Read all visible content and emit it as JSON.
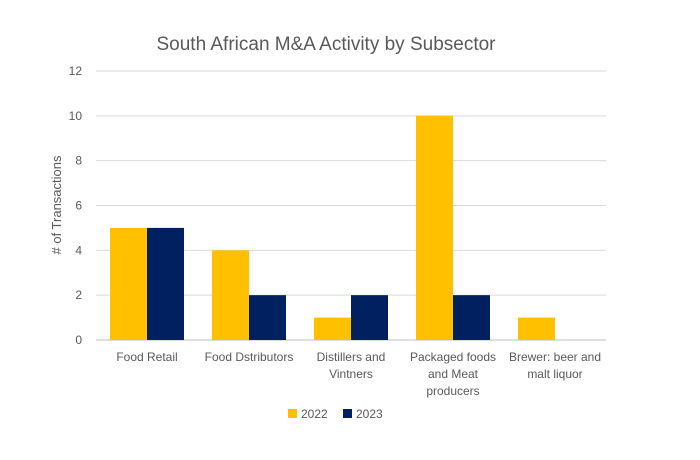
{
  "chart_data": {
    "type": "bar",
    "title": "South African M&A Activity by Subsector",
    "xlabel": "",
    "ylabel": "# of Transactions",
    "ylim": [
      0,
      12
    ],
    "yticks": [
      0,
      2,
      4,
      6,
      8,
      10,
      12
    ],
    "grid": true,
    "legend_position": "bottom",
    "categories": [
      [
        "Food Retail"
      ],
      [
        "Food Dstributors"
      ],
      [
        "Distillers and",
        "Vintners"
      ],
      [
        "Packaged foods",
        "and Meat",
        "producers"
      ],
      [
        "Brewer: beer and",
        "malt liquor"
      ]
    ],
    "series": [
      {
        "name": "2022",
        "color": "#FFC000",
        "values": [
          5,
          4,
          1,
          10,
          1
        ]
      },
      {
        "name": "2023",
        "color": "#002060",
        "values": [
          5,
          2,
          2,
          2,
          0
        ]
      }
    ]
  }
}
